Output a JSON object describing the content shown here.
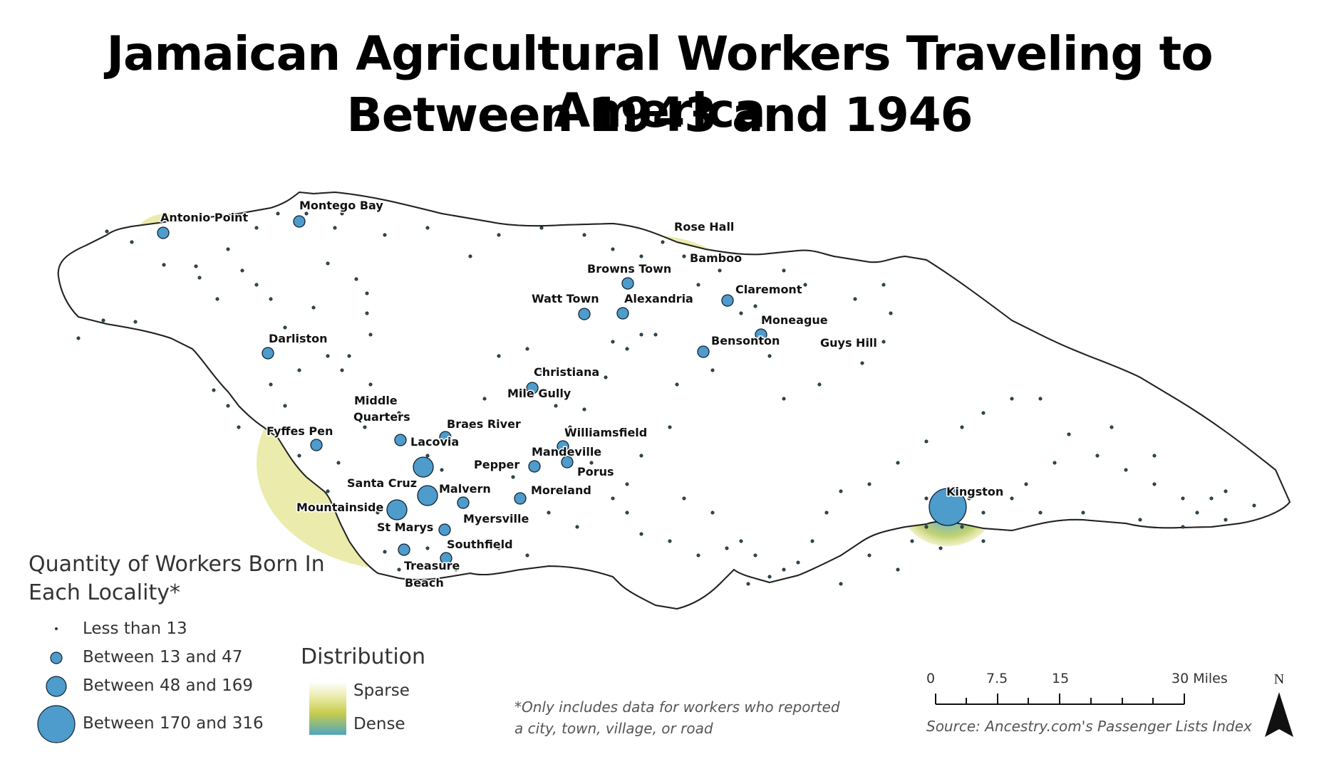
{
  "title": {
    "line1": "Jamaican Agricultural Workers Traveling to America",
    "line2": "Between 1943 and 1946"
  },
  "places": [
    {
      "name": "Antonio Point",
      "size": "medium"
    },
    {
      "name": "Montego Bay",
      "size": "medium"
    },
    {
      "name": "Rose Hall",
      "size": "none"
    },
    {
      "name": "Bamboo",
      "size": "none"
    },
    {
      "name": "Browns Town",
      "size": "medium"
    },
    {
      "name": "Watt Town",
      "size": "medium"
    },
    {
      "name": "Alexandria",
      "size": "medium"
    },
    {
      "name": "Claremont",
      "size": "medium"
    },
    {
      "name": "Moneague",
      "size": "medium"
    },
    {
      "name": "Bensonton",
      "size": "medium"
    },
    {
      "name": "Guys Hill",
      "size": "none"
    },
    {
      "name": "Darliston",
      "size": "medium"
    },
    {
      "name": "Christiana",
      "size": "none"
    },
    {
      "name": "Mile Gully",
      "size": "medium"
    },
    {
      "name": "Middle",
      "size": "none"
    },
    {
      "name": "Quarters",
      "size": "none"
    },
    {
      "name": "Braes River",
      "size": "medium"
    },
    {
      "name": "Williamsfield",
      "size": "none"
    },
    {
      "name": "Fyffes Pen",
      "size": "medium"
    },
    {
      "name": "Lacovia",
      "size": "medium"
    },
    {
      "name": "Mandeville",
      "size": "medium"
    },
    {
      "name": "Pepper",
      "size": "medium"
    },
    {
      "name": "Porus",
      "size": "medium"
    },
    {
      "name": "Santa Cruz",
      "size": "large"
    },
    {
      "name": "Malvern",
      "size": "large"
    },
    {
      "name": "Moreland",
      "size": "medium"
    },
    {
      "name": "Mountainside",
      "size": "large"
    },
    {
      "name": "Myersville",
      "size": "medium"
    },
    {
      "name": "St Marys",
      "size": "medium"
    },
    {
      "name": "Southfield",
      "size": "medium"
    },
    {
      "name": "Treasure",
      "size": "medium"
    },
    {
      "name": "Beach",
      "size": "none"
    },
    {
      "name": "Kingston",
      "size": "largest"
    }
  ],
  "legend": {
    "title": "Quantity of Workers Born In Each Locality*",
    "items": [
      {
        "label": "Less than 13",
        "size_class": "tiny"
      },
      {
        "label": "Between 13 and 47",
        "size_class": "small"
      },
      {
        "label": "Between 48 and 169",
        "size_class": "medium"
      },
      {
        "label": "Between 170 and 316",
        "size_class": "large"
      }
    ]
  },
  "distribution": {
    "title": "Distribution",
    "low_label": "Sparse",
    "high_label": "Dense",
    "colors": {
      "sparse": "#e9e9a4",
      "mid": "#c5cc4c",
      "dense": "#5aa8b8"
    }
  },
  "scale_bar": {
    "labels": [
      "0",
      "7.5",
      "15",
      "30 Miles"
    ]
  },
  "north_arrow": {
    "label": "N"
  },
  "footnote": "*Only includes data for workers who reported a city, town, village, or road",
  "source": "Source: Ancestry.com's Passenger Lists Index",
  "colors": {
    "symbol_fill": "#4d9ccb",
    "coast": "#222222"
  }
}
